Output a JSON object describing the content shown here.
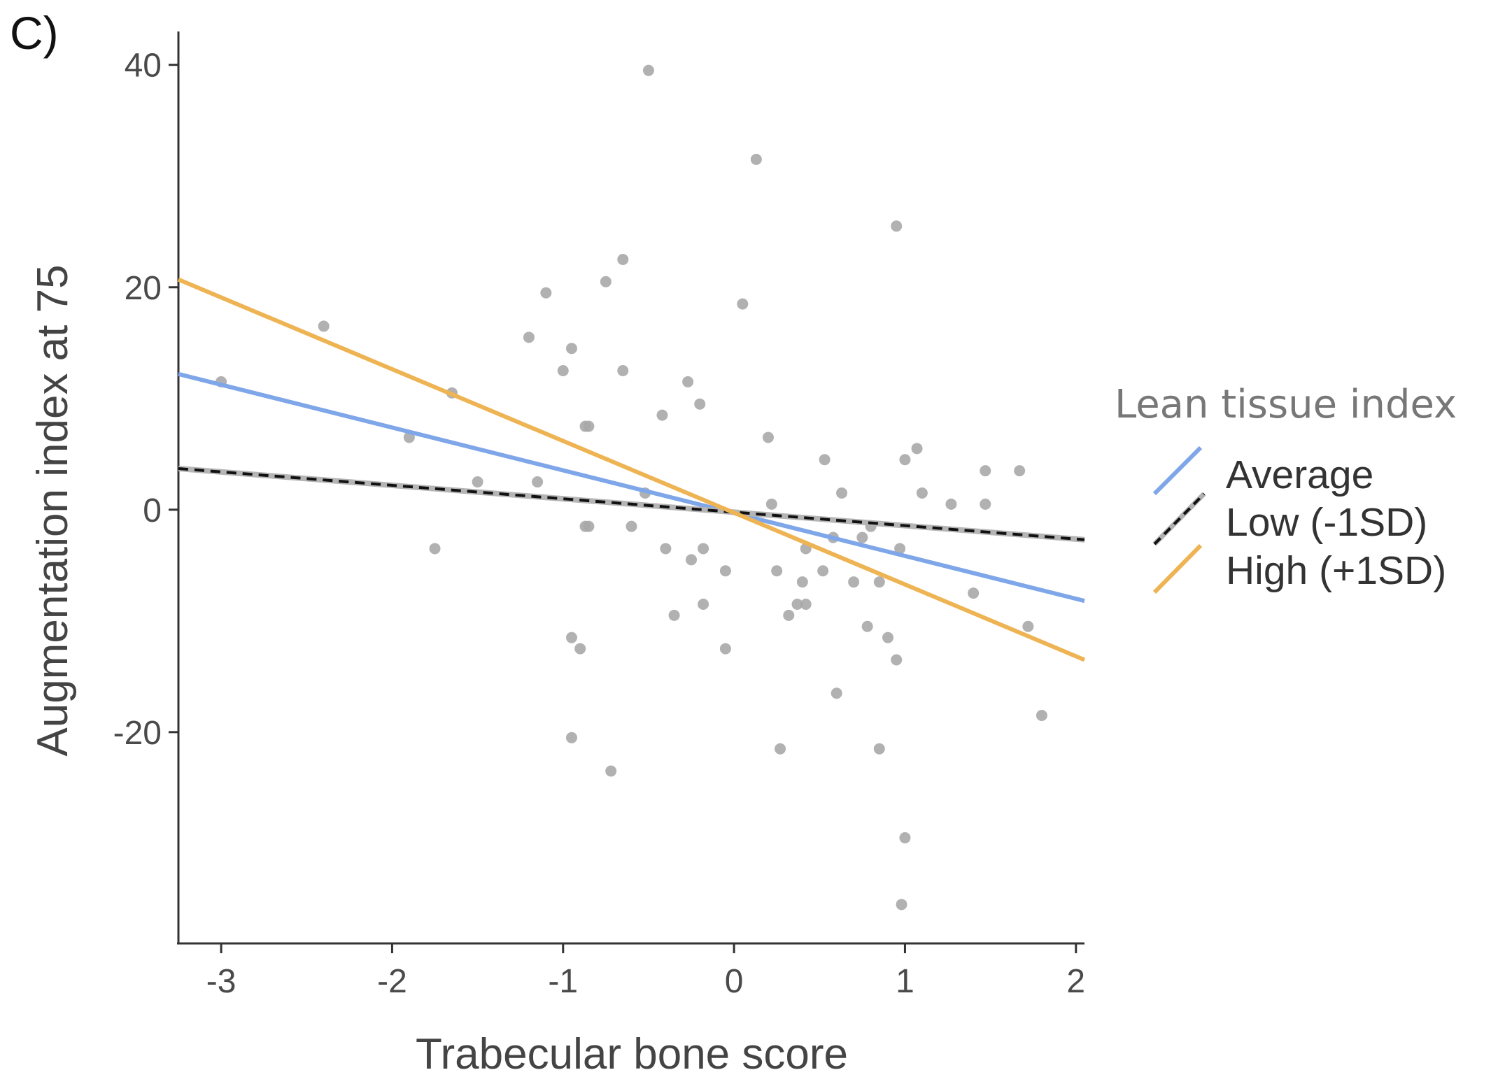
{
  "panel_label": "C)",
  "chart_data": {
    "type": "scatter",
    "xlabel": "Trabecular bone score",
    "ylabel": "Augmentation index at 75",
    "xlim": [
      -3.25,
      2.05
    ],
    "ylim": [
      -39,
      43
    ],
    "x_ticks": [
      -3,
      -2,
      -1,
      0,
      1,
      2
    ],
    "x_tick_labels": [
      "-3",
      "-2",
      "-1",
      "0",
      "1",
      "2"
    ],
    "y_ticks": [
      -20,
      0,
      20,
      40
    ],
    "y_tick_labels": [
      "-20",
      "0",
      "20",
      "40"
    ],
    "grid": false,
    "legend": {
      "title": "Lean tissue index",
      "position": "right",
      "entries": [
        {
          "label": "Average",
          "color": "#7ea6e8",
          "style": "solid"
        },
        {
          "label": "Low (-1SD)",
          "color": "#111111",
          "style": "dashed"
        },
        {
          "label": "High (+1SD)",
          "color": "#eeb454",
          "style": "solid"
        }
      ]
    },
    "points_color": "#a9a9a9",
    "points": [
      [
        -3.0,
        11.5
      ],
      [
        -2.4,
        16.5
      ],
      [
        -1.9,
        6.5
      ],
      [
        -1.65,
        10.5
      ],
      [
        -1.75,
        -3.5
      ],
      [
        -1.5,
        2.5
      ],
      [
        -1.15,
        2.5
      ],
      [
        -1.2,
        15.5
      ],
      [
        -1.1,
        19.5
      ],
      [
        -1.0,
        12.5
      ],
      [
        -0.95,
        14.5
      ],
      [
        -0.87,
        7.5
      ],
      [
        -0.85,
        7.5
      ],
      [
        -0.87,
        -1.5
      ],
      [
        -0.85,
        -1.5
      ],
      [
        -0.95,
        -11.5
      ],
      [
        -0.9,
        -12.5
      ],
      [
        -0.95,
        -20.5
      ],
      [
        -0.72,
        -23.5
      ],
      [
        -0.75,
        20.5
      ],
      [
        -0.65,
        22.5
      ],
      [
        -0.65,
        12.5
      ],
      [
        -0.6,
        -1.5
      ],
      [
        -0.5,
        39.5
      ],
      [
        -0.52,
        1.5
      ],
      [
        -0.42,
        8.5
      ],
      [
        -0.4,
        -3.5
      ],
      [
        -0.35,
        -9.5
      ],
      [
        -0.27,
        11.5
      ],
      [
        -0.25,
        -4.5
      ],
      [
        -0.2,
        9.5
      ],
      [
        -0.18,
        -3.5
      ],
      [
        -0.18,
        -8.5
      ],
      [
        -0.05,
        -5.5
      ],
      [
        -0.05,
        -12.5
      ],
      [
        0.05,
        18.5
      ],
      [
        0.13,
        31.5
      ],
      [
        0.2,
        6.5
      ],
      [
        0.22,
        0.5
      ],
      [
        0.25,
        -5.5
      ],
      [
        0.27,
        -21.5
      ],
      [
        0.32,
        -9.5
      ],
      [
        0.37,
        -8.5
      ],
      [
        0.4,
        -6.5
      ],
      [
        0.42,
        -3.5
      ],
      [
        0.42,
        -8.5
      ],
      [
        0.52,
        -5.5
      ],
      [
        0.53,
        4.5
      ],
      [
        0.58,
        -2.5
      ],
      [
        0.6,
        -16.5
      ],
      [
        0.63,
        1.5
      ],
      [
        0.7,
        -6.5
      ],
      [
        0.75,
        -2.5
      ],
      [
        0.78,
        -10.5
      ],
      [
        0.8,
        -1.5
      ],
      [
        0.85,
        -21.5
      ],
      [
        0.85,
        -6.5
      ],
      [
        0.9,
        -11.5
      ],
      [
        0.95,
        25.5
      ],
      [
        0.95,
        -13.5
      ],
      [
        0.97,
        -3.5
      ],
      [
        1.0,
        4.5
      ],
      [
        1.0,
        -29.5
      ],
      [
        0.98,
        -35.5
      ],
      [
        1.07,
        5.5
      ],
      [
        1.1,
        1.5
      ],
      [
        1.27,
        0.5
      ],
      [
        1.4,
        -7.5
      ],
      [
        1.47,
        3.5
      ],
      [
        1.47,
        0.5
      ],
      [
        1.67,
        3.5
      ],
      [
        1.72,
        -10.5
      ],
      [
        1.8,
        -18.5
      ]
    ],
    "series": [
      {
        "name": "Average",
        "x": [
          -3.25,
          2.05
        ],
        "y": [
          12.2,
          -8.2
        ],
        "color": "#7ea6e8"
      },
      {
        "name": "Low (-1SD)",
        "x": [
          -3.25,
          2.05
        ],
        "y": [
          3.7,
          -2.7
        ],
        "color": "#111111",
        "dashed": true
      },
      {
        "name": "High (+1SD)",
        "x": [
          -3.25,
          2.05
        ],
        "y": [
          20.7,
          -13.5
        ],
        "color": "#eeb454"
      }
    ]
  }
}
